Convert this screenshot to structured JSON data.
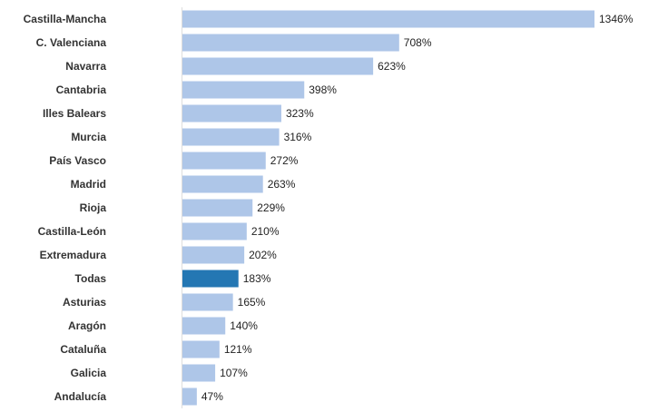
{
  "chart_data": {
    "type": "bar",
    "orientation": "horizontal",
    "categories": [
      "Castilla-Mancha",
      "C. Valenciana",
      "Navarra",
      "Cantabria",
      "Illes Balears",
      "Murcia",
      "País Vasco",
      "Madrid",
      "Rioja",
      "Castilla-León",
      "Extremadura",
      "Todas",
      "Asturias",
      "Aragón",
      "Cataluña",
      "Galicia",
      "Andalucía"
    ],
    "values": [
      1346,
      708,
      623,
      398,
      323,
      316,
      272,
      263,
      229,
      210,
      202,
      183,
      165,
      140,
      121,
      107,
      47
    ],
    "value_labels": [
      "1346%",
      "708%",
      "623%",
      "398%",
      "323%",
      "316%",
      "272%",
      "263%",
      "229%",
      "210%",
      "202%",
      "183%",
      "165%",
      "140%",
      "121%",
      "107%",
      "47%"
    ],
    "colors": [
      "#aec6e8",
      "#aec6e8",
      "#aec6e8",
      "#aec6e8",
      "#aec6e8",
      "#aec6e8",
      "#aec6e8",
      "#aec6e8",
      "#aec6e8",
      "#aec6e8",
      "#aec6e8",
      "#2477b3",
      "#aec6e8",
      "#aec6e8",
      "#aec6e8",
      "#aec6e8",
      "#aec6e8"
    ]
  }
}
